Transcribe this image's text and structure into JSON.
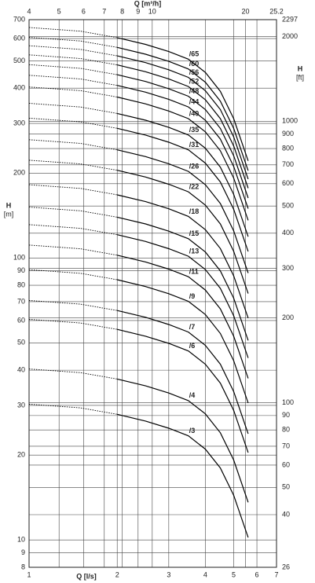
{
  "chart_data": {
    "type": "line",
    "xlabel": "Q [l/s]",
    "x2label": "Q [m³/h]",
    "ylabel": [
      "H",
      "[m]"
    ],
    "y2label": [
      "H",
      "[ft]"
    ],
    "xlog": true,
    "ylog": true,
    "grid": true,
    "color": "#000000",
    "dashed_below_x": 2,
    "xlim": [
      1,
      7
    ],
    "xticks": [
      1,
      2,
      3,
      4,
      5,
      6,
      7
    ],
    "x2lim": [
      4,
      25.2
    ],
    "x2ticks": [
      4,
      5,
      6,
      7,
      8,
      9,
      10,
      20,
      25.2
    ],
    "ylim": [
      8,
      700
    ],
    "yticks": [
      8,
      9,
      10,
      20,
      30,
      40,
      50,
      60,
      70,
      80,
      90,
      100,
      200,
      300,
      400,
      500,
      600,
      700
    ],
    "y2lim": [
      26,
      2297
    ],
    "y2ticks": [
      26,
      40,
      50,
      60,
      70,
      80,
      90,
      100,
      200,
      300,
      400,
      500,
      600,
      700,
      800,
      900,
      1000,
      2000,
      2297
    ],
    "x": [
      1,
      1.5,
      2,
      2.5,
      3,
      3.5,
      4,
      4.5,
      5,
      5.6
    ],
    "series": [
      {
        "name": "/3",
        "values": [
          30.3,
          29.4,
          27.9,
          26.4,
          24.9,
          23.4,
          21,
          18,
          14.4,
          10.2
        ]
      },
      {
        "name": "/4",
        "values": [
          40.4,
          39.2,
          37.2,
          35.2,
          33.2,
          31.2,
          28,
          24,
          19.2,
          13.6
        ]
      },
      {
        "name": "/6",
        "values": [
          60.6,
          58.8,
          55.8,
          52.8,
          49.8,
          46.8,
          42,
          36,
          28.8,
          20.4
        ]
      },
      {
        "name": "/7",
        "values": [
          70.7,
          68.6,
          65.1,
          61.6,
          58.1,
          54.6,
          49,
          42,
          33.6,
          23.8
        ]
      },
      {
        "name": "/9",
        "values": [
          90.9,
          88.2,
          83.7,
          79.2,
          74.7,
          70.2,
          63,
          54,
          43.2,
          30.6
        ]
      },
      {
        "name": "/11",
        "values": [
          111.1,
          107.8,
          102.3,
          96.8,
          91.3,
          85.8,
          77,
          66,
          52.8,
          37.4
        ]
      },
      {
        "name": "/13",
        "values": [
          131.3,
          127.4,
          120.9,
          114.4,
          107.9,
          101.4,
          91,
          78,
          62.4,
          44.2
        ]
      },
      {
        "name": "/15",
        "values": [
          151.5,
          147,
          139.5,
          132,
          124.5,
          117,
          105,
          90,
          72,
          51
        ]
      },
      {
        "name": "/18",
        "values": [
          181.8,
          176.4,
          167.4,
          158.4,
          149.4,
          140.4,
          126,
          108,
          86.4,
          61.2
        ]
      },
      {
        "name": "/22",
        "values": [
          222.2,
          215.6,
          204.6,
          193.6,
          182.6,
          171.6,
          154,
          132,
          105.6,
          74.8
        ]
      },
      {
        "name": "/26",
        "values": [
          262.6,
          254.8,
          241.8,
          228.8,
          215.8,
          202.8,
          182,
          156,
          124.8,
          88.4
        ]
      },
      {
        "name": "/31",
        "values": [
          313.1,
          303.8,
          288.3,
          272.8,
          257.3,
          241.8,
          217,
          186,
          148.8,
          105.4
        ]
      },
      {
        "name": "/35",
        "values": [
          353.5,
          343,
          325.5,
          308,
          290.5,
          273,
          245,
          210,
          168,
          119
        ]
      },
      {
        "name": "/40",
        "values": [
          404,
          392,
          372,
          352,
          332,
          312,
          280,
          240,
          192,
          136
        ]
      },
      {
        "name": "/44",
        "values": [
          444.4,
          431.2,
          409.2,
          387.2,
          365.2,
          343.2,
          308,
          264,
          211.2,
          149.6
        ]
      },
      {
        "name": "/48",
        "values": [
          484.8,
          470.4,
          446.4,
          422.4,
          398.4,
          374.4,
          336,
          288,
          230.4,
          163.2
        ]
      },
      {
        "name": "/52",
        "values": [
          525.2,
          509.6,
          483.6,
          457.6,
          431.6,
          405.6,
          364,
          312,
          249.6,
          176.8
        ]
      },
      {
        "name": "/56",
        "values": [
          565.6,
          548.8,
          520.8,
          492.8,
          464.8,
          436.8,
          392,
          336,
          268.8,
          190.4
        ]
      },
      {
        "name": "/60",
        "values": [
          606,
          588,
          558,
          528,
          498,
          468,
          420,
          360,
          288,
          204
        ]
      },
      {
        "name": "/65",
        "values": [
          656.5,
          637,
          604.5,
          572,
          539.5,
          507,
          455,
          390,
          312,
          221
        ]
      }
    ]
  }
}
